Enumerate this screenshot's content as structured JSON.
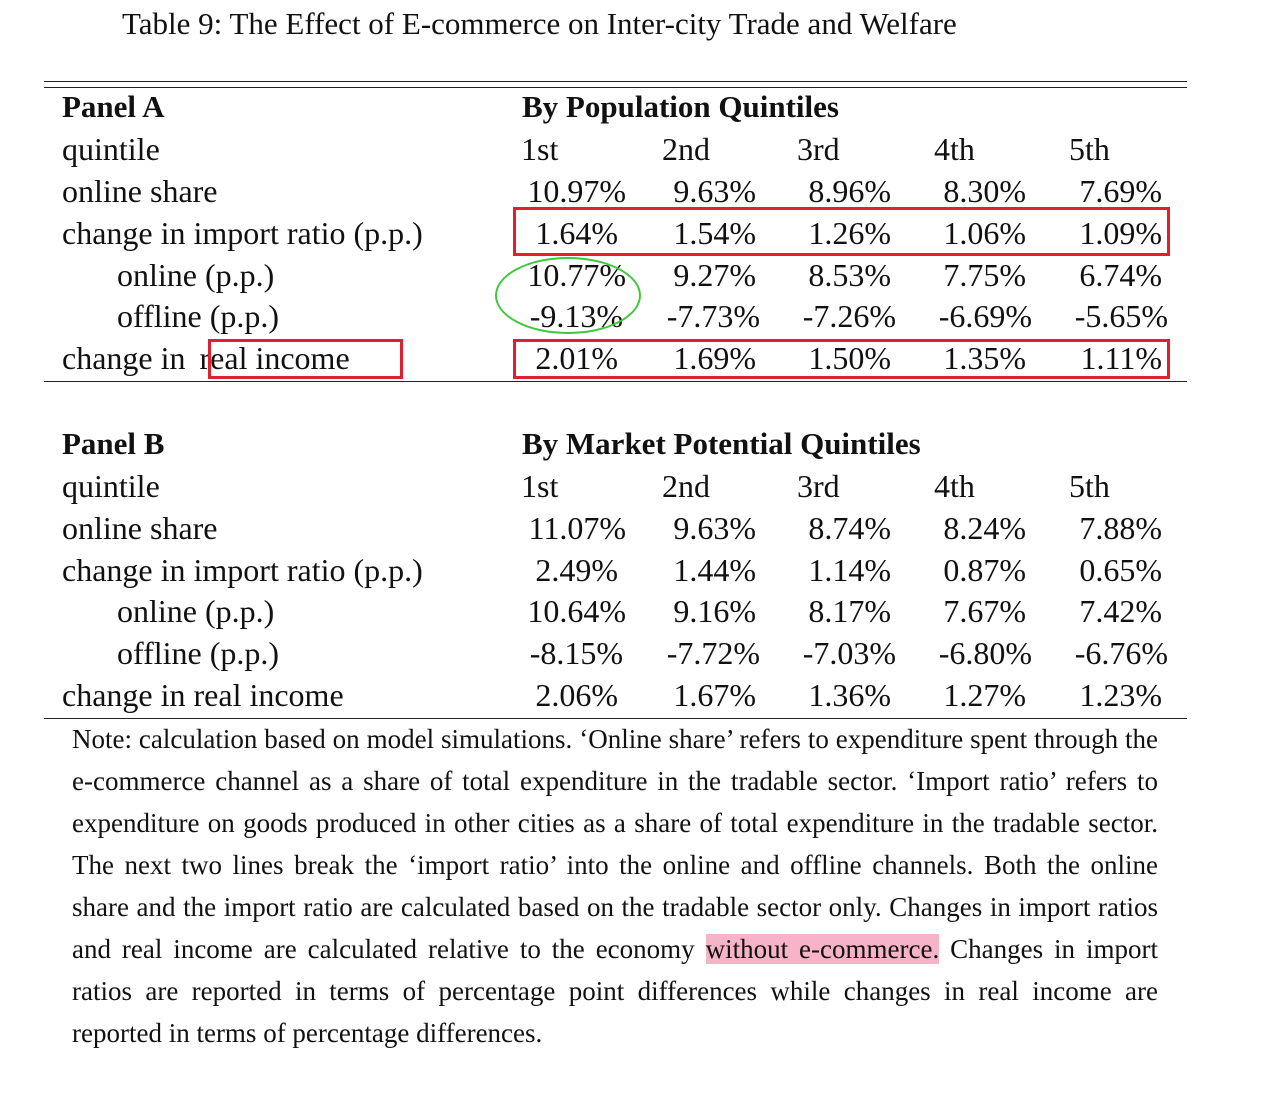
{
  "caption": "Table 9:  The Effect of E-commerce on Inter-city Trade and Welfare",
  "panels": [
    {
      "panel_label": "Panel A",
      "group_header": "By Population Quintiles",
      "quintile_label": "quintile",
      "quintiles": [
        "1st",
        "2nd",
        "3rd",
        "4th",
        "5th"
      ],
      "rows": [
        {
          "label": "online share",
          "values": [
            "10.97%",
            "9.63%",
            "8.96%",
            "8.30%",
            "7.69%"
          ]
        },
        {
          "label": "change in import ratio (p.p.)",
          "values": [
            "1.64%",
            "1.54%",
            "1.26%",
            "1.06%",
            "1.09%"
          ]
        },
        {
          "label": "online (p.p.)",
          "values": [
            "10.77%",
            "9.27%",
            "8.53%",
            "7.75%",
            "6.74%"
          ]
        },
        {
          "label": "offline (p.p.)",
          "values": [
            "-9.13%",
            "-7.73%",
            "-7.26%",
            "-6.69%",
            "-5.65%"
          ]
        },
        {
          "label_prefix": "change in ",
          "label_suffix": "real income",
          "values": [
            "2.01%",
            "1.69%",
            "1.50%",
            "1.35%",
            "1.11%"
          ]
        }
      ]
    },
    {
      "panel_label": "Panel B",
      "group_header": "By Market Potential Quintiles",
      "quintile_label": "quintile",
      "quintiles": [
        "1st",
        "2nd",
        "3rd",
        "4th",
        "5th"
      ],
      "rows": [
        {
          "label": "online share",
          "values": [
            "11.07%",
            "9.63%",
            "8.74%",
            "8.24%",
            "7.88%"
          ]
        },
        {
          "label": "change in import ratio (p.p.)",
          "values": [
            "2.49%",
            "1.44%",
            "1.14%",
            "0.87%",
            "0.65%"
          ]
        },
        {
          "label": "online (p.p.)",
          "values": [
            "10.64%",
            "9.16%",
            "8.17%",
            "7.67%",
            "7.42%"
          ]
        },
        {
          "label": "offline (p.p.)",
          "values": [
            "-8.15%",
            "-7.72%",
            "-7.03%",
            "-6.80%",
            "-6.76%"
          ]
        },
        {
          "label": "change in real income",
          "values": [
            "2.06%",
            "1.67%",
            "1.36%",
            "1.27%",
            "1.23%"
          ]
        }
      ]
    }
  ],
  "note": {
    "before_highlight": "Note: calculation based on model simulations. ‘Online share’ refers to expenditure spent through the e-commerce channel as a share of total expenditure in the tradable sector. ‘Import ratio’ refers to expenditure on goods produced in other cities as a share of total expenditure in the tradable sector.  The next two lines break the ‘import ratio’ into the online and offline channels.  Both the online share and the import ratio are calculated based on the tradable sector only. Changes in import ratios and real income are calculated relative to the economy ",
    "highlight": "without e-commerce.",
    "after_highlight": " Changes in import ratios are reported in terms of percentage point differences while changes in real income are reported in terms of percentage differences."
  },
  "annotation_colors": {
    "box": "#e0202c",
    "ellipse": "#3ec83e",
    "highlight": "#f7b3c8"
  }
}
